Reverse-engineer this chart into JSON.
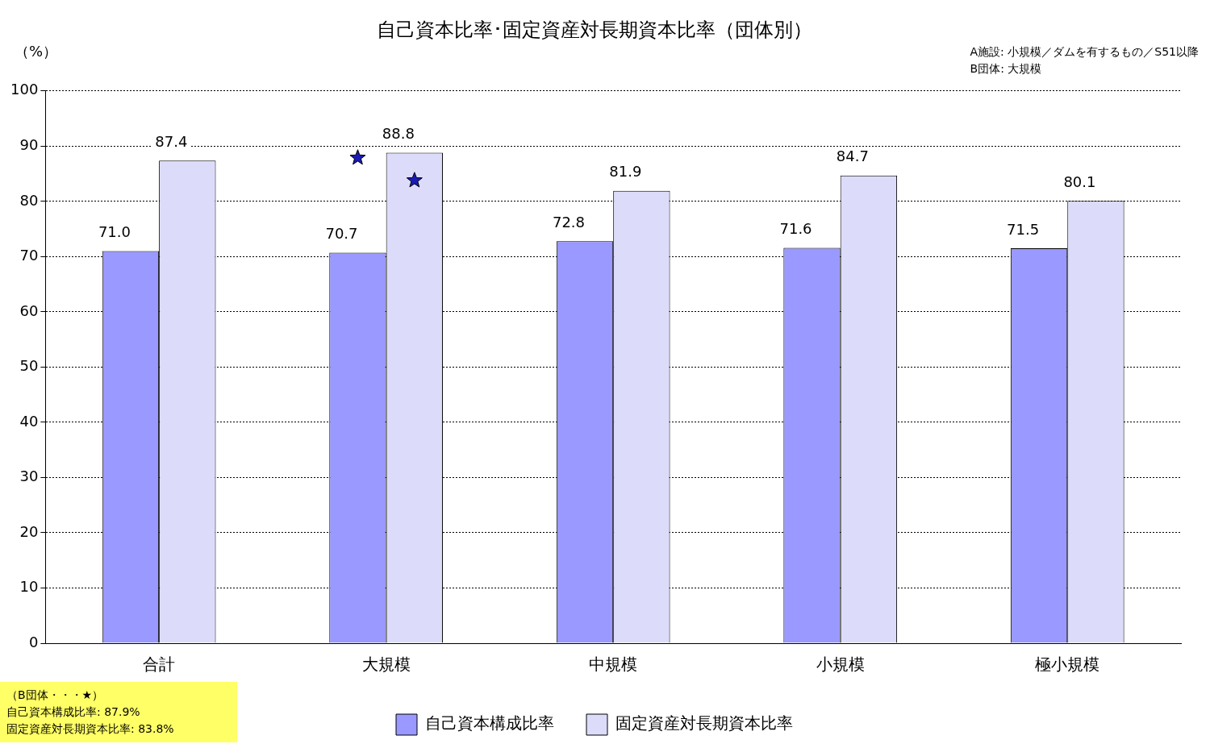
{
  "chart_data": {
    "type": "bar",
    "title": "自己資本比率･固定資産対長期資本比率（団体別）",
    "ylabel": "（%）",
    "categories": [
      "合計",
      "大規模",
      "中規模",
      "小規模",
      "極小規模"
    ],
    "series": [
      {
        "name": "自己資本構成比率",
        "color": "#9999ff",
        "values": [
          71.0,
          70.7,
          72.8,
          71.6,
          71.5
        ],
        "value_labels": [
          "71.0",
          "70.7",
          "72.8",
          "71.6",
          "71.5"
        ]
      },
      {
        "name": "固定資産対長期資本比率",
        "color": "#dcdcfa",
        "values": [
          87.4,
          88.8,
          81.9,
          84.7,
          80.1
        ],
        "value_labels": [
          "87.4",
          "88.8",
          "81.9",
          "84.7",
          "80.1"
        ]
      },
      {
        "type": "scatter",
        "color": "#1a1ab4",
        "x": [
          "大規模"
        ],
        "values": [
          87.9
        ]
      },
      {
        "type": "scatter",
        "color": "#1a1ab4",
        "x": [
          "大規模"
        ],
        "values": [
          83.8
        ]
      }
    ],
    "ylim": [
      0,
      100
    ],
    "yticks": [
      0,
      10,
      20,
      30,
      40,
      50,
      60,
      70,
      80,
      90,
      100
    ],
    "grid": "y",
    "legend": "bottom",
    "marker": "star",
    "annotations": [
      "A施設: 小規模／ダムを有するもの／S51以降",
      "B団体: 大規模",
      "（B団体・・・★）",
      "自己資本構成比率: 87.9%",
      "固定資産対長期資本比率: 83.8%"
    ]
  }
}
